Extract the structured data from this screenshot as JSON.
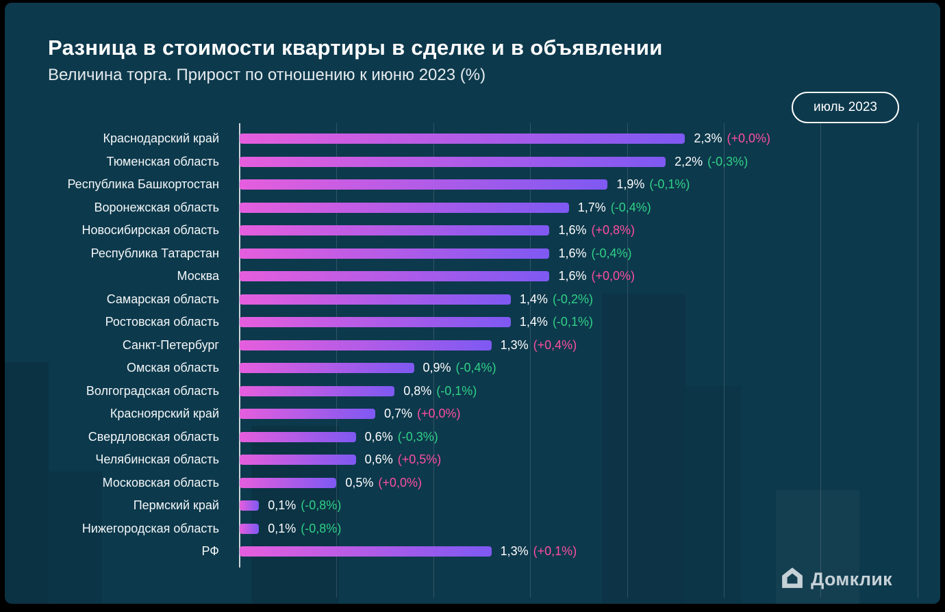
{
  "header": {
    "title": "Разница в стоимости квартиры в сделке и в объявлении",
    "subtitle": "Величина торга. Прирост по отношению к июню 2023 (%)",
    "period_badge": "июль 2023"
  },
  "footer": {
    "brand": "Домклик",
    "brand_icon": "house-icon"
  },
  "colors": {
    "background": "#0d394c",
    "bar_gradient_start": "#e55edd",
    "bar_gradient_end": "#7e59f2",
    "positive_change": "#fb4fa0",
    "negative_change": "#30d287",
    "text": "#ffffff"
  },
  "chart_data": {
    "type": "bar",
    "orientation": "horizontal",
    "title": "Разница в стоимости квартиры в сделке и в объявлении",
    "subtitle": "Величина торга. Прирост по отношению к июню 2023 (%)",
    "xlabel": "",
    "ylabel": "",
    "unit": "%",
    "axis_max": 3.575,
    "grid_step": 0.5,
    "grid": true,
    "legend": false,
    "rows": [
      {
        "region": "Краснодарский край",
        "value": 2.3,
        "value_label": "2,3%",
        "change_value": 0.0,
        "change_label": "(+0,0%)",
        "change_type": "positive"
      },
      {
        "region": "Тюменская область",
        "value": 2.2,
        "value_label": "2,2%",
        "change_value": -0.3,
        "change_label": "(-0,3%)",
        "change_type": "negative"
      },
      {
        "region": "Республика Башкортостан",
        "value": 1.9,
        "value_label": "1,9%",
        "change_value": -0.1,
        "change_label": "(-0,1%)",
        "change_type": "negative"
      },
      {
        "region": "Воронежская область",
        "value": 1.7,
        "value_label": "1,7%",
        "change_value": -0.4,
        "change_label": "(-0,4%)",
        "change_type": "negative"
      },
      {
        "region": "Новосибирская область",
        "value": 1.6,
        "value_label": "1,6%",
        "change_value": 0.8,
        "change_label": "(+0,8%)",
        "change_type": "positive"
      },
      {
        "region": "Республика Татарстан",
        "value": 1.6,
        "value_label": "1,6%",
        "change_value": -0.4,
        "change_label": "(-0,4%)",
        "change_type": "negative"
      },
      {
        "region": "Москва",
        "value": 1.6,
        "value_label": "1,6%",
        "change_value": 0.0,
        "change_label": "(+0,0%)",
        "change_type": "positive"
      },
      {
        "region": "Самарская область",
        "value": 1.4,
        "value_label": "1,4%",
        "change_value": -0.2,
        "change_label": "(-0,2%)",
        "change_type": "negative"
      },
      {
        "region": "Ростовская область",
        "value": 1.4,
        "value_label": "1,4%",
        "change_value": -0.1,
        "change_label": "(-0,1%)",
        "change_type": "negative"
      },
      {
        "region": "Санкт-Петербург",
        "value": 1.3,
        "value_label": "1,3%",
        "change_value": 0.4,
        "change_label": "(+0,4%)",
        "change_type": "positive"
      },
      {
        "region": "Омская область",
        "value": 0.9,
        "value_label": "0,9%",
        "change_value": -0.4,
        "change_label": "(-0,4%)",
        "change_type": "negative"
      },
      {
        "region": "Волгоградская область",
        "value": 0.8,
        "value_label": "0,8%",
        "change_value": -0.1,
        "change_label": "(-0,1%)",
        "change_type": "negative"
      },
      {
        "region": "Красноярский край",
        "value": 0.7,
        "value_label": "0,7%",
        "change_value": 0.0,
        "change_label": "(+0,0%)",
        "change_type": "positive"
      },
      {
        "region": "Свердловская область",
        "value": 0.6,
        "value_label": "0,6%",
        "change_value": -0.3,
        "change_label": "(-0,3%)",
        "change_type": "negative"
      },
      {
        "region": "Челябинская область",
        "value": 0.6,
        "value_label": "0,6%",
        "change_value": 0.5,
        "change_label": "(+0,5%)",
        "change_type": "positive"
      },
      {
        "region": "Московская область",
        "value": 0.5,
        "value_label": "0,5%",
        "change_value": 0.0,
        "change_label": "(+0,0%)",
        "change_type": "positive"
      },
      {
        "region": "Пермский край",
        "value": 0.1,
        "value_label": "0,1%",
        "change_value": -0.8,
        "change_label": "(-0,8%)",
        "change_type": "negative"
      },
      {
        "region": "Нижегородская область",
        "value": 0.1,
        "value_label": "0,1%",
        "change_value": -0.8,
        "change_label": "(-0,8%)",
        "change_type": "negative"
      },
      {
        "region": "РФ",
        "value": 1.3,
        "value_label": "1,3%",
        "change_value": 0.1,
        "change_label": "(+0,1%)",
        "change_type": "positive"
      }
    ]
  }
}
